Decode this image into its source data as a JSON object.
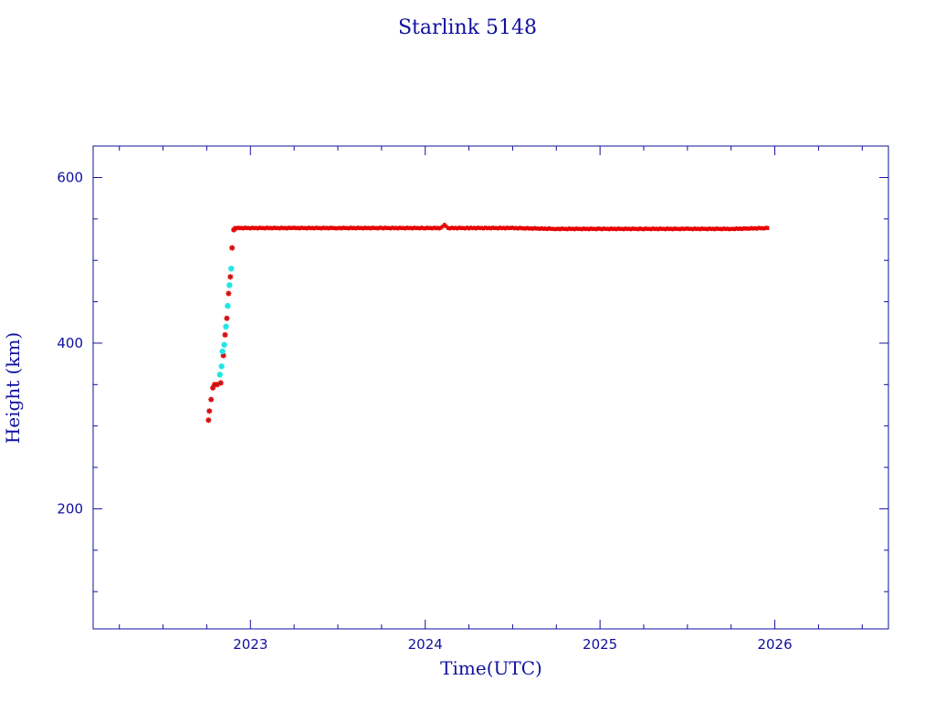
{
  "chart_data": {
    "type": "scatter",
    "title": "Starlink 5148",
    "xlabel": "Time(UTC)",
    "ylabel": "Height (km)",
    "xlim": [
      2022.1,
      2026.65
    ],
    "ylim": [
      55,
      638
    ],
    "x_major_ticks": [
      2023,
      2024,
      2025,
      2026
    ],
    "x_tick_labels": [
      "2023",
      "2024",
      "2025",
      "2026"
    ],
    "x_minor_ticks": [
      2022.25,
      2022.5,
      2022.75,
      2023.25,
      2023.5,
      2023.75,
      2024.25,
      2024.5,
      2024.75,
      2025.25,
      2025.5,
      2025.75,
      2026.25,
      2026.5
    ],
    "y_major_ticks": [
      200,
      400,
      600
    ],
    "y_tick_labels": [
      "200",
      "400",
      "600"
    ],
    "y_minor_ticks": [
      100,
      150,
      250,
      300,
      350,
      450,
      500,
      550
    ],
    "grid": false,
    "colors": {
      "axis": "#1010a0",
      "main_series": "#e60000",
      "main_marker_core": "#555555",
      "maneuver_series": "#22e6e6"
    },
    "series": [
      {
        "marker": "asterisk",
        "color": "#e60000",
        "x": [
          2022.76,
          2022.765,
          2022.775,
          2022.785,
          2022.795,
          2022.81,
          2022.83,
          2022.845,
          2022.855,
          2022.865,
          2022.875,
          2022.885,
          2022.895,
          2022.905
        ],
        "y": [
          307,
          318,
          332,
          346,
          350,
          350,
          352,
          385,
          410,
          430,
          460,
          480,
          515,
          537
        ]
      },
      {
        "marker": "dot",
        "color": "#22e6e6",
        "x": [
          2022.825,
          2022.835,
          2022.84,
          2022.85,
          2022.86,
          2022.87,
          2022.88,
          2022.89
        ],
        "y": [
          362,
          372,
          390,
          398,
          420,
          445,
          470,
          490
        ]
      },
      {
        "marker": "line",
        "color": "#e60000",
        "x": [
          2022.91,
          2023.0,
          2023.25,
          2023.5,
          2023.75,
          2024.0,
          2024.09,
          2024.11,
          2024.13,
          2024.25,
          2024.5,
          2024.75,
          2025.0,
          2025.25,
          2025.5,
          2025.75,
          2025.96
        ],
        "y": [
          539,
          539,
          539,
          539,
          539,
          539,
          539,
          543,
          539,
          539,
          539,
          538,
          538,
          538,
          538,
          538,
          539
        ]
      }
    ]
  }
}
